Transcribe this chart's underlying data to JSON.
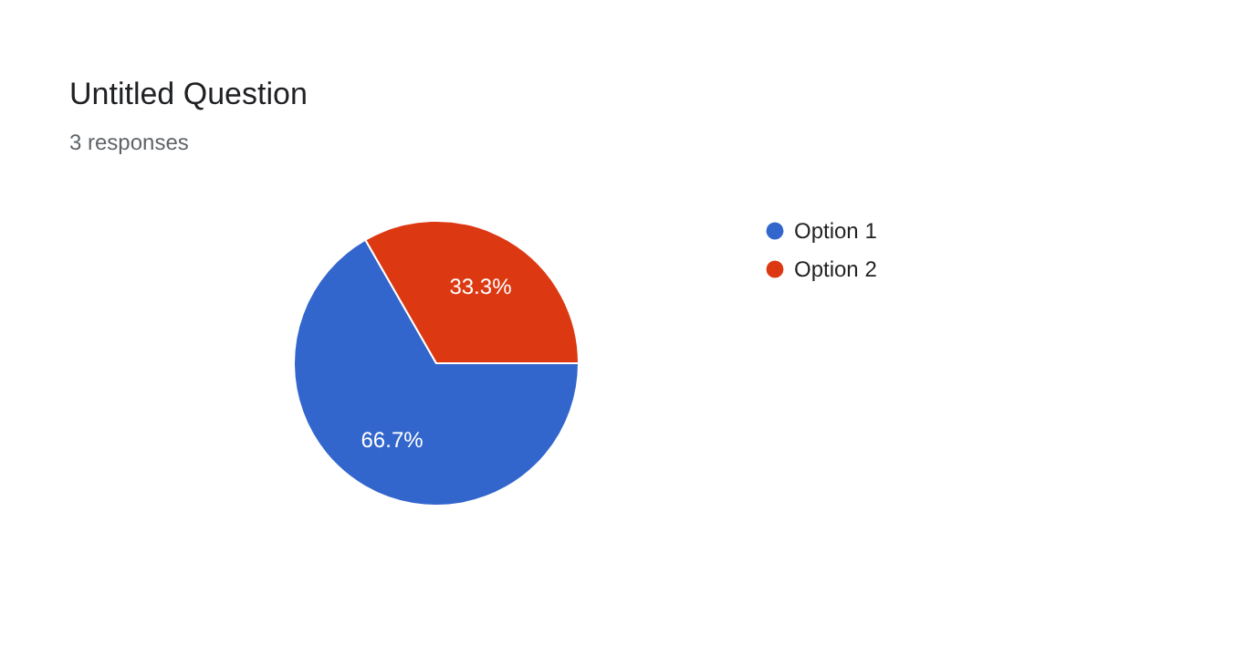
{
  "chart_data": {
    "type": "pie",
    "title": "Untitled Question",
    "subtitle": "3 responses",
    "categories": [
      "Option 1",
      "Option 2"
    ],
    "values": [
      66.7,
      33.3
    ],
    "colors": [
      "#3366cc",
      "#dc3912"
    ],
    "value_labels": [
      "66.7%",
      "33.3%"
    ],
    "legend": "right"
  }
}
